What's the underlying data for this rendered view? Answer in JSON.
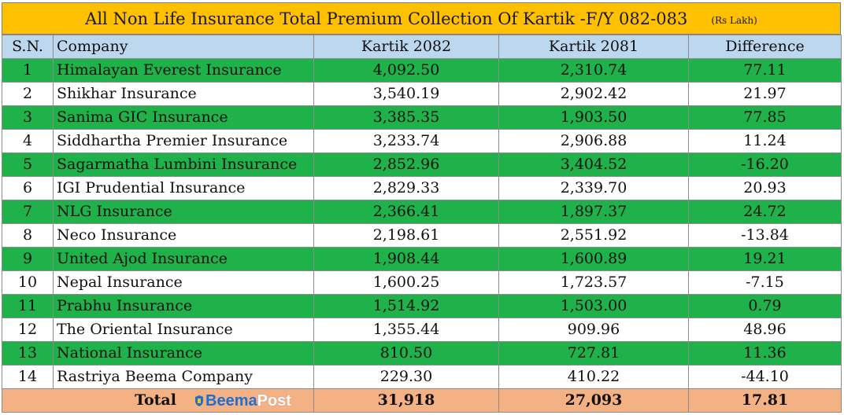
{
  "title": "All Non Life Insurance Total Premium Collection Of Kartik -F/Y 082-083",
  "unit": "(Rs Lakh)",
  "headers": {
    "sn": "S.N.",
    "company": "Company",
    "current": "Kartik 2082",
    "previous": "Kartik 2081",
    "difference": "Difference"
  },
  "rows": [
    {
      "sn": "1",
      "company": "Himalayan Everest Insurance",
      "current": "4,092.50",
      "previous": "2,310.74",
      "difference": "77.11"
    },
    {
      "sn": "2",
      "company": "Shikhar Insurance",
      "current": "3,540.19",
      "previous": "2,902.42",
      "difference": "21.97"
    },
    {
      "sn": "3",
      "company": "Sanima GIC Insurance",
      "current": "3,385.35",
      "previous": "1,903.50",
      "difference": "77.85"
    },
    {
      "sn": "4",
      "company": "Siddhartha Premier Insurance",
      "current": "3,233.74",
      "previous": "2,906.88",
      "difference": "11.24"
    },
    {
      "sn": "5",
      "company": "Sagarmatha Lumbini Insurance",
      "current": "2,852.96",
      "previous": "3,404.52",
      "difference": "-16.20"
    },
    {
      "sn": "6",
      "company": "IGI Prudential Insurance",
      "current": "2,829.33",
      "previous": "2,339.70",
      "difference": "20.93"
    },
    {
      "sn": "7",
      "company": "NLG Insurance",
      "current": "2,366.41",
      "previous": "1,897.37",
      "difference": "24.72"
    },
    {
      "sn": "8",
      "company": "Neco Insurance",
      "current": "2,198.61",
      "previous": "2,551.92",
      "difference": "-13.84"
    },
    {
      "sn": "9",
      "company": "United Ajod Insurance",
      "current": "1,908.44",
      "previous": "1,600.89",
      "difference": "19.21"
    },
    {
      "sn": "10",
      "company": "Nepal Insurance",
      "current": "1,600.25",
      "previous": "1,723.57",
      "difference": "-7.15"
    },
    {
      "sn": "11",
      "company": "Prabhu Insurance",
      "current": "1,514.92",
      "previous": "1,503.00",
      "difference": "0.79"
    },
    {
      "sn": "12",
      "company": "The Oriental Insurance",
      "current": "1,355.44",
      "previous": "909.96",
      "difference": "48.96"
    },
    {
      "sn": "13",
      "company": "National Insurance",
      "current": "810.50",
      "previous": "727.81",
      "difference": "11.36"
    },
    {
      "sn": "14",
      "company": "Rastriya Beema Company",
      "current": "229.30",
      "previous": "410.22",
      "difference": "-44.10"
    }
  ],
  "total": {
    "label": "Total",
    "current": "31,918",
    "previous": "27,093",
    "difference": "17.81"
  },
  "logo": {
    "part1": "Beema",
    "part2": "Post"
  },
  "colors": {
    "title_bg": "#ffc000",
    "header_bg": "#bdd7ee",
    "green_row": "#1fb14a",
    "total_bg": "#f4b183"
  }
}
